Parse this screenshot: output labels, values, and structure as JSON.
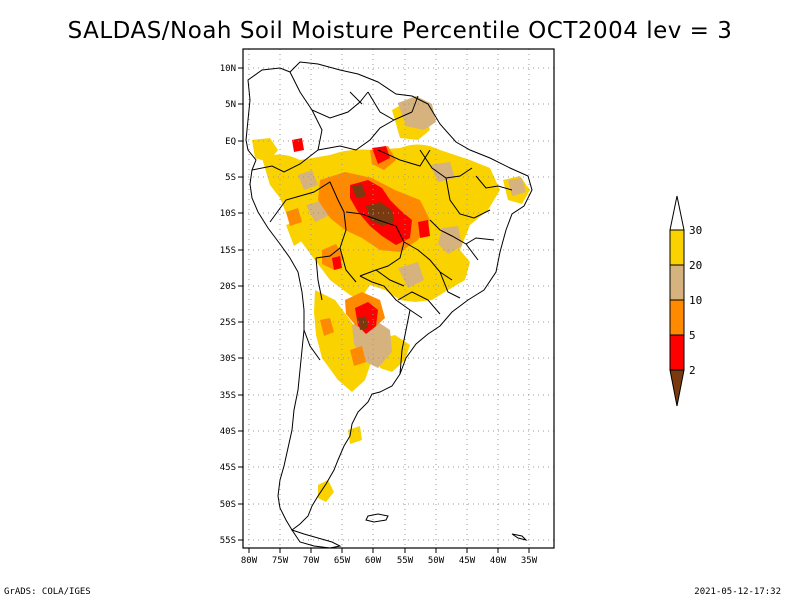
{
  "title": "SALDAS/Noah Soil Moisture Percentile OCT2004 lev = 3",
  "footer": {
    "left": "GrADS: COLA/IGES",
    "right": "2021-05-12-17:32"
  },
  "map": {
    "region": "South America",
    "lon_range": [
      -81,
      -31
    ],
    "lat_range": [
      -56,
      11
    ],
    "lat_labels": [
      "10N",
      "5N",
      "EQ",
      "5S",
      "10S",
      "15S",
      "20S",
      "25S",
      "30S",
      "35S",
      "40S",
      "45S",
      "50S",
      "55S"
    ],
    "lon_labels": [
      "80W",
      "75W",
      "70W",
      "65W",
      "60W",
      "55W",
      "50W",
      "45W",
      "40W",
      "35W"
    ],
    "grid": "dotted"
  },
  "colorbar": {
    "labels": [
      "30",
      "20",
      "10",
      "5",
      "2"
    ],
    "colors": {
      "above_30": "#ffffff",
      "c20_30": "#fad200",
      "c10_20": "#d6b27e",
      "c5_10": "#ff8a00",
      "c2_5": "#ff0000",
      "below_2": "#7a3a10"
    }
  }
}
